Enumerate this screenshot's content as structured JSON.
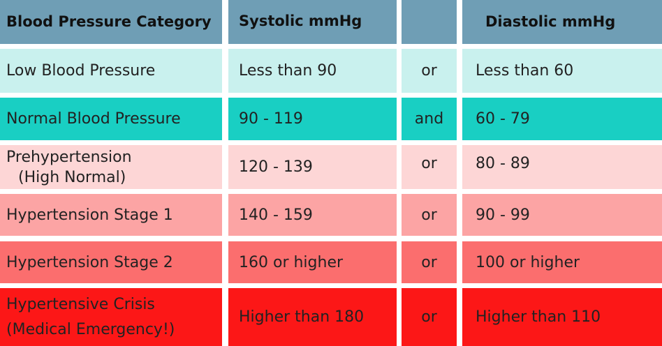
{
  "colors": {
    "header": "#6f9eb5",
    "low": "#c9f1ee",
    "normal": "#19cfc3",
    "prehypertension": "#fdd6d6",
    "stage1": "#fca4a4",
    "stage2": "#fb6e6e",
    "crisis": "#fc1717"
  },
  "header": {
    "category": "Blood Pressure Category",
    "systolic": "Systolic mmHg",
    "connector": "",
    "diastolic": "Diastolic mmHg"
  },
  "rows": [
    {
      "category": "Low Blood Pressure",
      "systolic": "Less than 90",
      "connector": "or",
      "diastolic": "Less than 60"
    },
    {
      "category": "Normal Blood Pressure",
      "systolic": "90 - 119",
      "connector": "and",
      "diastolic": "60 - 79"
    },
    {
      "category_line1": "Prehypertension",
      "category_line2": "(High Normal)",
      "systolic": "120 - 139",
      "connector": "or",
      "diastolic": "80 - 89"
    },
    {
      "category": "Hypertension Stage 1",
      "systolic": "140 - 159",
      "connector": "or",
      "diastolic": "90 - 99"
    },
    {
      "category": "Hypertension Stage 2",
      "systolic": "160 or higher",
      "connector": "or",
      "diastolic": "100 or higher"
    },
    {
      "category_line1": "Hypertensive Crisis",
      "category_line2": "(Medical Emergency!)",
      "systolic": "Higher than 180",
      "connector": "or",
      "diastolic": "Higher than 110"
    }
  ]
}
